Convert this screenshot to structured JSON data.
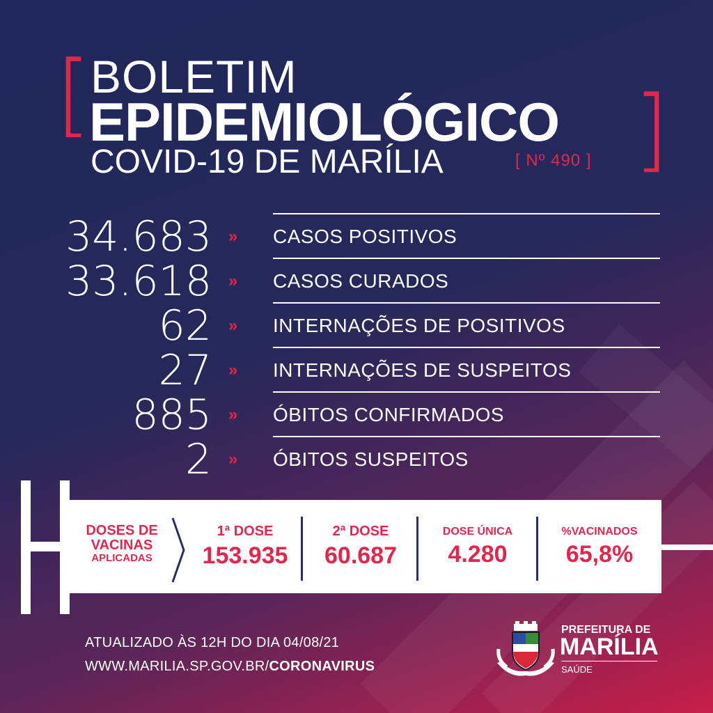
{
  "header": {
    "line1": "BOLETIM",
    "line2": "EPIDEMIOLÓGICO",
    "line3": "COVID-19 DE MARÍLIA",
    "issue": "[ Nº 490 ]"
  },
  "stats": [
    {
      "value": "34.683",
      "label": "CASOS POSITIVOS"
    },
    {
      "value": "33.618",
      "label": "CASOS CURADOS"
    },
    {
      "value": "62",
      "label": "INTERNAÇÕES DE POSITIVOS"
    },
    {
      "value": "27",
      "label": "INTERNAÇÕES DE SUSPEITOS"
    },
    {
      "value": "885",
      "label": "ÓBITOS CONFIRMADOS"
    },
    {
      "value": "2",
      "label": "ÓBITOS SUSPEITOS"
    }
  ],
  "arrow_glyph": "»",
  "vaccines": {
    "heading_1": "DOSES DE",
    "heading_2": "VACINAS",
    "heading_3": "APLICADAS",
    "items": [
      {
        "label": "1ª DOSE",
        "value": "153.935"
      },
      {
        "label": "2ª DOSE",
        "value": "60.687"
      },
      {
        "label": "DOSE ÚNICA",
        "value": "4.280"
      },
      {
        "label": "%VACINADOS",
        "value": "65,8%"
      }
    ]
  },
  "footer": {
    "updated": "ATUALIZADO ÀS 12H DO DIA 04/08/21",
    "url_prefix": "WWW.MARILIA.SP.GOV.BR/",
    "url_suffix": "CORONAVIRUS"
  },
  "logo": {
    "line1": "PREFEITURA DE",
    "line2": "MARÍLIA",
    "line3": "SAÚDE"
  },
  "colors": {
    "accent": "#e0284f",
    "background_top": "#20275a",
    "background_bottom": "#c81e4a",
    "text": "#ffffff"
  }
}
